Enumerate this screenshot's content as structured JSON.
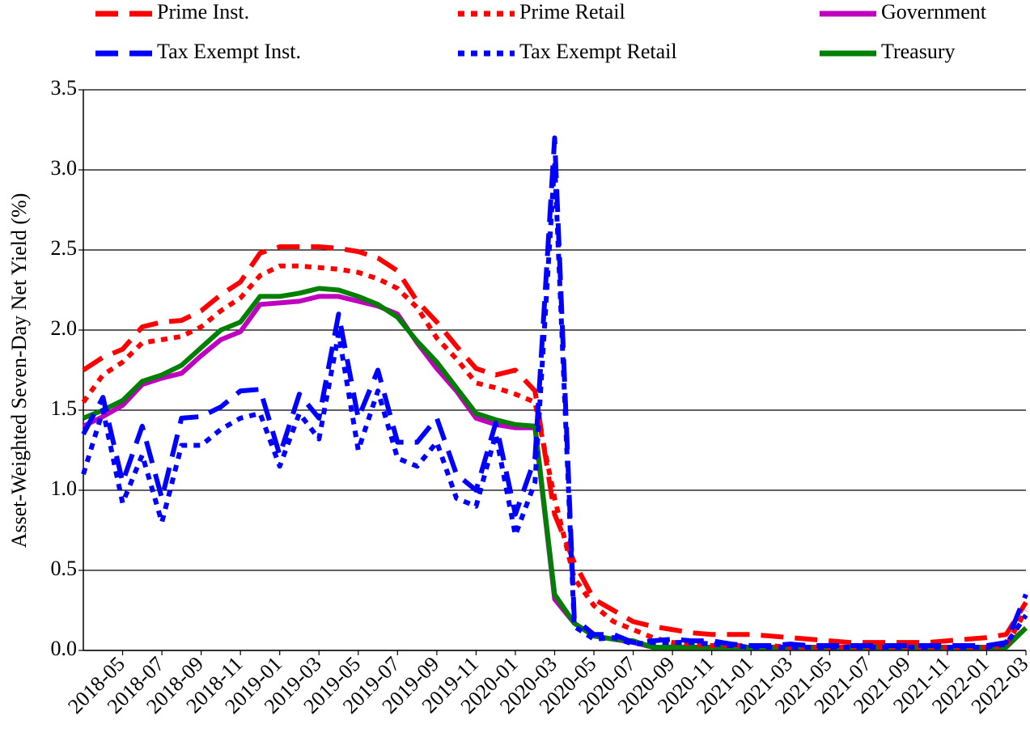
{
  "chart_data": {
    "type": "line",
    "y_label": "Asset-Weighted Seven-Day Net Yield (%)",
    "x": [
      "2018-03",
      "2018-04",
      "2018-05",
      "2018-06",
      "2018-07",
      "2018-08",
      "2018-09",
      "2018-10",
      "2018-11",
      "2018-12",
      "2019-01",
      "2019-02",
      "2019-03",
      "2019-04",
      "2019-05",
      "2019-06",
      "2019-07",
      "2019-08",
      "2019-09",
      "2019-10",
      "2019-11",
      "2019-12",
      "2020-01",
      "2020-02",
      "2020-03",
      "2020-04",
      "2020-05",
      "2020-06",
      "2020-07",
      "2020-08",
      "2020-09",
      "2020-10",
      "2020-11",
      "2020-12",
      "2021-01",
      "2021-02",
      "2021-03",
      "2021-04",
      "2021-05",
      "2021-06",
      "2021-07",
      "2021-08",
      "2021-09",
      "2021-10",
      "2021-11",
      "2021-12",
      "2022-01",
      "2022-02",
      "2022-03"
    ],
    "xticks": [
      "2018-05",
      "2018-07",
      "2018-09",
      "2018-11",
      "2019-01",
      "2019-03",
      "2019-05",
      "2019-07",
      "2019-09",
      "2019-11",
      "2020-01",
      "2020-03",
      "2020-05",
      "2020-07",
      "2020-09",
      "2020-11",
      "2021-01",
      "2021-03",
      "2021-05",
      "2021-07",
      "2021-09",
      "2021-11",
      "2022-01",
      "2022-03"
    ],
    "ylim": [
      0,
      3.5
    ],
    "yticks": [
      {
        "value": 0,
        "label": "0.0"
      },
      0.5,
      {
        "value": 1,
        "label": "1.0"
      },
      1.5,
      {
        "value": 2,
        "label": "2.0"
      },
      2.5,
      {
        "value": 3,
        "label": "3.0"
      },
      3.5
    ],
    "grid": true,
    "series": [
      {
        "name": "Prime Inst.",
        "color": "#ff0000",
        "dash": "dashed",
        "values": [
          1.75,
          1.83,
          1.88,
          2.02,
          2.05,
          2.06,
          2.12,
          2.22,
          2.3,
          2.48,
          2.52,
          2.52,
          2.52,
          2.51,
          2.49,
          2.45,
          2.37,
          2.18,
          2.05,
          1.9,
          1.76,
          1.72,
          1.75,
          1.62,
          0.85,
          0.55,
          0.32,
          0.25,
          0.18,
          0.15,
          0.13,
          0.11,
          0.1,
          0.1,
          0.1,
          0.09,
          0.08,
          0.07,
          0.06,
          0.05,
          0.05,
          0.05,
          0.05,
          0.05,
          0.06,
          0.07,
          0.08,
          0.1,
          0.3
        ]
      },
      {
        "name": "Prime Retail",
        "color": "#ff0000",
        "dash": "dotted",
        "values": [
          1.55,
          1.72,
          1.8,
          1.92,
          1.94,
          1.96,
          2.02,
          2.12,
          2.2,
          2.34,
          2.4,
          2.4,
          2.39,
          2.38,
          2.36,
          2.32,
          2.26,
          2.14,
          1.95,
          1.82,
          1.67,
          1.64,
          1.6,
          1.55,
          0.95,
          0.45,
          0.28,
          0.18,
          0.13,
          0.08,
          0.05,
          0.04,
          0.03,
          0.03,
          0.03,
          0.03,
          0.02,
          0.02,
          0.02,
          0.02,
          0.02,
          0.02,
          0.02,
          0.02,
          0.02,
          0.02,
          0.02,
          0.03,
          0.25
        ]
      },
      {
        "name": "Government",
        "color": "#bf00bf",
        "dash": "solid",
        "values": [
          1.4,
          1.46,
          1.53,
          1.66,
          1.7,
          1.73,
          1.84,
          1.94,
          1.99,
          2.16,
          2.17,
          2.18,
          2.21,
          2.21,
          2.18,
          2.15,
          2.1,
          1.92,
          1.76,
          1.62,
          1.45,
          1.41,
          1.39,
          1.39,
          0.32,
          0.17,
          0.09,
          0.07,
          0.05,
          0.02,
          0.02,
          0.02,
          0.02,
          0.02,
          0.02,
          0.02,
          0.02,
          0.02,
          0.02,
          0.02,
          0.02,
          0.02,
          0.02,
          0.02,
          0.02,
          0.02,
          0.02,
          0.03,
          0.14
        ]
      },
      {
        "name": "Tax Exempt Inst.",
        "color": "#0000ff",
        "dash": "dashed",
        "values": [
          1.35,
          1.58,
          1.05,
          1.4,
          0.95,
          1.45,
          1.46,
          1.52,
          1.62,
          1.63,
          1.22,
          1.6,
          1.45,
          2.1,
          1.45,
          1.75,
          1.3,
          1.3,
          1.45,
          1.1,
          1.0,
          1.42,
          0.85,
          1.2,
          3.2,
          0.2,
          0.1,
          0.1,
          0.05,
          0.06,
          0.07,
          0.06,
          0.06,
          0.04,
          0.03,
          0.03,
          0.04,
          0.03,
          0.03,
          0.03,
          0.03,
          0.03,
          0.03,
          0.03,
          0.03,
          0.03,
          0.03,
          0.05,
          0.35
        ]
      },
      {
        "name": "Tax Exempt Retail",
        "color": "#0000ff",
        "dash": "dotted",
        "values": [
          1.1,
          1.5,
          0.92,
          1.22,
          0.8,
          1.28,
          1.28,
          1.38,
          1.45,
          1.48,
          1.15,
          1.48,
          1.32,
          1.98,
          1.25,
          1.62,
          1.2,
          1.15,
          1.3,
          0.95,
          0.9,
          1.35,
          0.72,
          1.05,
          3.05,
          0.15,
          0.07,
          0.08,
          0.04,
          0.05,
          0.05,
          0.05,
          0.04,
          0.03,
          0.02,
          0.02,
          0.02,
          0.02,
          0.02,
          0.02,
          0.02,
          0.02,
          0.02,
          0.02,
          0.02,
          0.02,
          0.02,
          0.04,
          0.22
        ]
      },
      {
        "name": "Treasury",
        "color": "#008000",
        "dash": "solid",
        "values": [
          1.45,
          1.5,
          1.56,
          1.68,
          1.72,
          1.78,
          1.89,
          2.0,
          2.05,
          2.21,
          2.21,
          2.23,
          2.26,
          2.25,
          2.21,
          2.16,
          2.08,
          1.93,
          1.8,
          1.64,
          1.48,
          1.44,
          1.41,
          1.4,
          0.35,
          0.17,
          0.09,
          0.07,
          0.06,
          0.02,
          0.02,
          0.02,
          0.02,
          0.02,
          0.02,
          0.02,
          0.02,
          0.02,
          0.02,
          0.02,
          0.02,
          0.02,
          0.02,
          0.02,
          0.02,
          0.02,
          0.02,
          0.02,
          0.14
        ]
      }
    ]
  }
}
